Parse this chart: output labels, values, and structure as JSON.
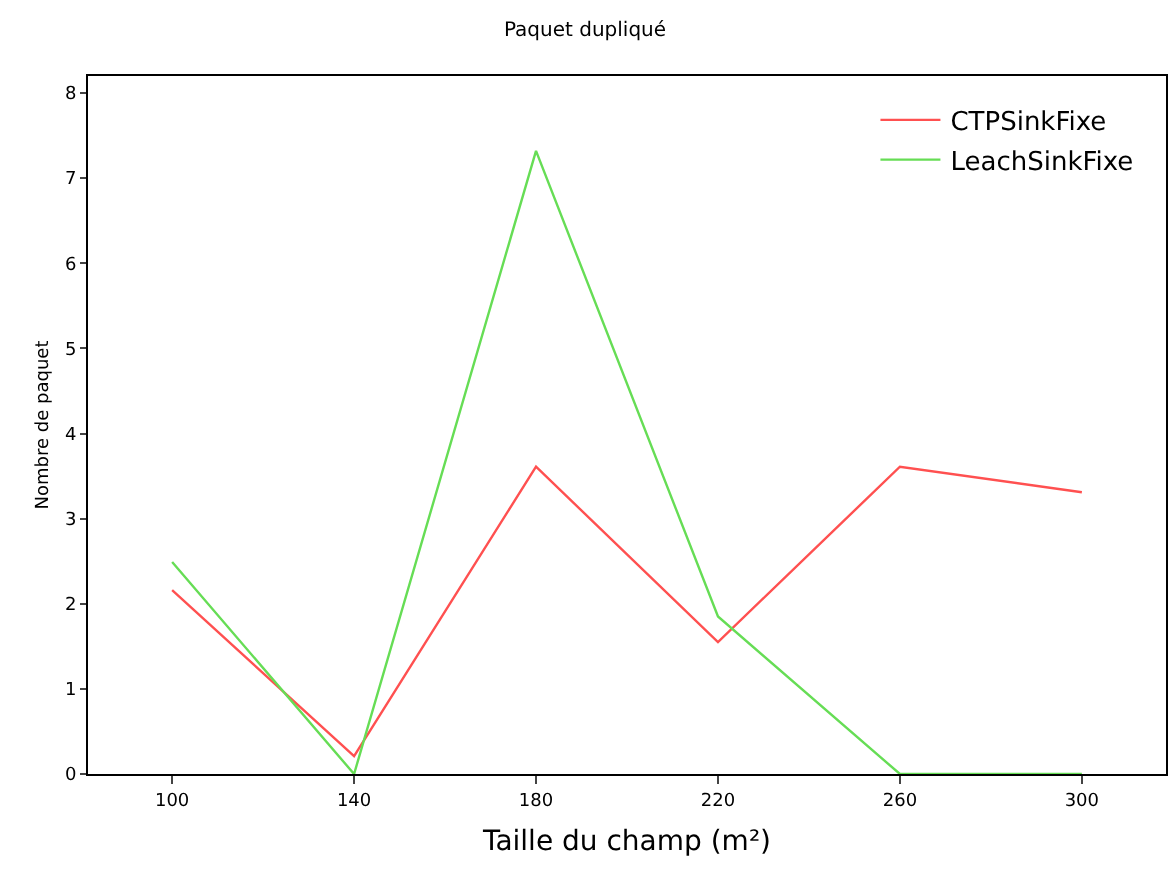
{
  "chart_data": {
    "type": "line",
    "title": "Paquet dupliqué",
    "xlabel": "Taille du champ (m²)",
    "ylabel": "Nombre de paquet",
    "x": [
      100,
      140,
      180,
      220,
      260,
      300
    ],
    "series": [
      {
        "name": "CTPSinkFixe",
        "color": "#ff5050",
        "values": [
          2.16,
          0.21,
          3.61,
          1.55,
          3.61,
          3.31
        ]
      },
      {
        "name": "LeachSinkFixe",
        "color": "#66dd55",
        "values": [
          2.49,
          0,
          7.32,
          1.85,
          0,
          0
        ]
      }
    ],
    "xlim": [
      81.5,
      318.5
    ],
    "xticks": [
      100,
      140,
      180,
      220,
      260,
      300
    ],
    "ylim": [
      0,
      8.2
    ],
    "yticks": [
      0,
      1,
      2,
      3,
      4,
      5,
      6,
      7,
      8
    ],
    "grid": false,
    "legend": "top right",
    "marker": "none",
    "line_style": "solid"
  }
}
